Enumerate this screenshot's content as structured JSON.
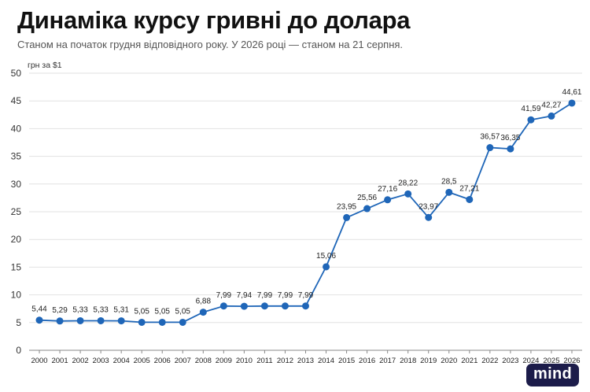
{
  "header": {
    "title": "Динаміка курсу гривні до долара",
    "subtitle": "Станом на початок грудня відповідного року. У 2026 році — станом на 21 серпня."
  },
  "brand": {
    "logo_text": "mind"
  },
  "colors": {
    "line": "#1f66b8",
    "grid": "#e2e2e2",
    "axis": "#888888",
    "label": "#222222"
  },
  "chart_data": {
    "type": "line",
    "title": "Динаміка курсу гривні до долара",
    "subtitle": "Станом на початок грудня відповідного року. У 2026 році — станом на 21 серпня.",
    "xlabel": "",
    "ylabel": "грн за $1",
    "ylim": [
      0,
      50
    ],
    "yticks": [
      0,
      5,
      10,
      15,
      20,
      25,
      30,
      35,
      40,
      45,
      50
    ],
    "grid": true,
    "legend": "none",
    "categories": [
      "2000",
      "2001",
      "2002",
      "2003",
      "2004",
      "2005",
      "2006",
      "2007",
      "2008",
      "2009",
      "2010",
      "2011",
      "2012",
      "2013",
      "2014",
      "2015",
      "2016",
      "2017",
      "2018",
      "2019",
      "2020",
      "2021",
      "2022",
      "2023",
      "2024",
      "2025",
      "2026"
    ],
    "series": [
      {
        "values": [
          5.44,
          5.29,
          5.33,
          5.33,
          5.31,
          5.05,
          5.05,
          5.05,
          6.88,
          7.99,
          7.94,
          7.99,
          7.99,
          7.99,
          15.06,
          23.95,
          25.56,
          27.16,
          28.22,
          23.97,
          28.5,
          27.21,
          36.57,
          36.35,
          41.59,
          42.27,
          44.61
        ],
        "labels": [
          "5,44",
          "5,29",
          "5,33",
          "5,33",
          "5,31",
          "5,05",
          "5,05",
          "5,05",
          "6,88",
          "7,99",
          "7,94",
          "7,99",
          "7,99",
          "7,99",
          "15,06",
          "23,95",
          "25,56",
          "27,16",
          "28,22",
          "23,97",
          "28,5",
          "27,21",
          "36,57",
          "36,35",
          "41,59",
          "42,27",
          "44,61"
        ]
      }
    ]
  }
}
